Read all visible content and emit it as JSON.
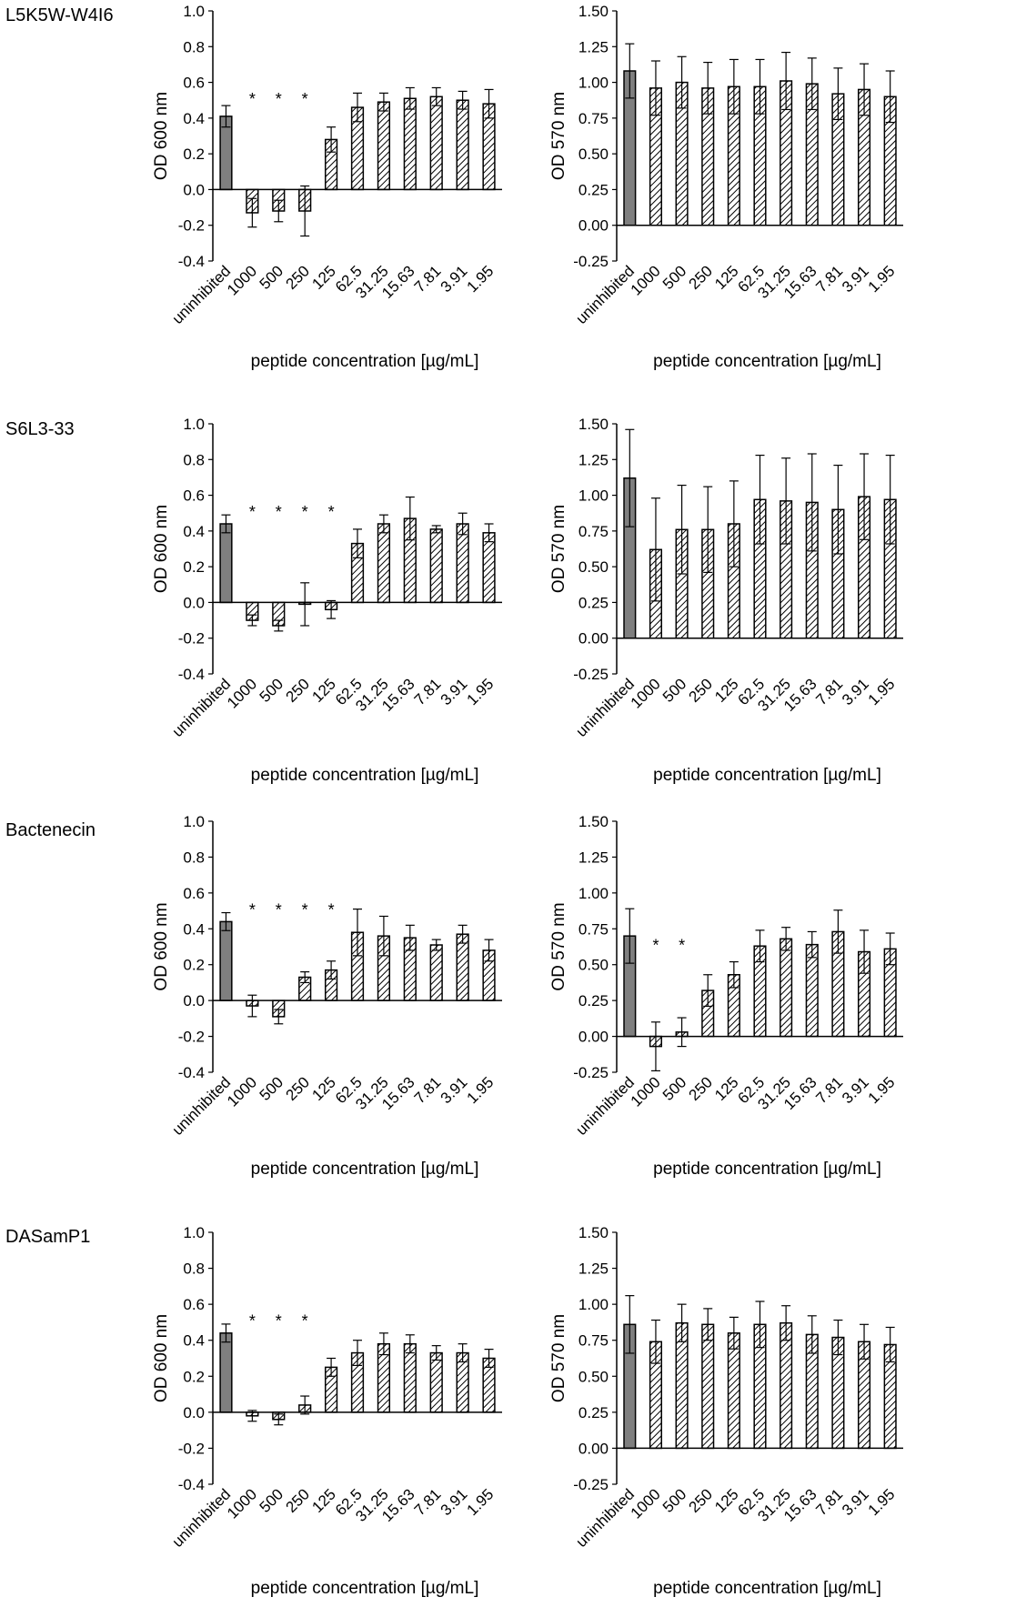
{
  "colors": {
    "uninhibited_fill": "#7f7f7f",
    "axis": "#000000",
    "hatch": "#000000",
    "background": "#ffffff"
  },
  "rows": [
    {
      "label": "L5K5W-W4I6"
    },
    {
      "label": "S6L3-33"
    },
    {
      "label": "Bactenecin"
    },
    {
      "label": "DASamP1"
    }
  ],
  "chart_data": [
    {
      "type": "bar",
      "row": 0,
      "col": 0,
      "categories": [
        "uninhibited",
        "1000",
        "500",
        "250",
        "125",
        "62.5",
        "31.25",
        "15.63",
        "7.81",
        "3.91",
        "1.95"
      ],
      "values": [
        0.41,
        -0.13,
        -0.12,
        -0.12,
        0.28,
        0.46,
        0.49,
        0.51,
        0.52,
        0.5,
        0.48
      ],
      "errors": [
        0.06,
        0.08,
        0.06,
        0.14,
        0.07,
        0.08,
        0.05,
        0.06,
        0.05,
        0.05,
        0.08
      ],
      "significant": [
        false,
        true,
        true,
        true,
        false,
        false,
        false,
        false,
        false,
        false,
        false
      ],
      "ylabel": "OD 600 nm",
      "xlabel": "peptide concentration [µg/mL]",
      "ylim": [
        -0.4,
        1.0
      ],
      "yticks": [
        "-0.4",
        "-0.2",
        "0.0",
        "0.2",
        "0.4",
        "0.6",
        "0.8",
        "1.0"
      ]
    },
    {
      "type": "bar",
      "row": 0,
      "col": 1,
      "categories": [
        "uninhibited",
        "1000",
        "500",
        "250",
        "125",
        "62.5",
        "31.25",
        "15.63",
        "7.81",
        "3.91",
        "1.95"
      ],
      "values": [
        1.08,
        0.96,
        1.0,
        0.96,
        0.97,
        0.97,
        1.01,
        0.99,
        0.92,
        0.95,
        0.9
      ],
      "errors": [
        0.19,
        0.19,
        0.18,
        0.18,
        0.19,
        0.19,
        0.2,
        0.18,
        0.18,
        0.18,
        0.18
      ],
      "significant": [
        false,
        false,
        false,
        false,
        false,
        false,
        false,
        false,
        false,
        false,
        false
      ],
      "ylabel": "OD 570 nm",
      "xlabel": "peptide concentration [µg/mL]",
      "ylim": [
        -0.25,
        1.5
      ],
      "yticks": [
        "-0.25",
        "0.00",
        "0.25",
        "0.50",
        "0.75",
        "1.00",
        "1.25",
        "1.50"
      ]
    },
    {
      "type": "bar",
      "row": 1,
      "col": 0,
      "categories": [
        "uninhibited",
        "1000",
        "500",
        "250",
        "125",
        "62.5",
        "31.25",
        "15.63",
        "7.81",
        "3.91",
        "1.95"
      ],
      "values": [
        0.44,
        -0.1,
        -0.13,
        -0.01,
        -0.04,
        0.33,
        0.44,
        0.47,
        0.41,
        0.44,
        0.39
      ],
      "errors": [
        0.05,
        0.03,
        0.03,
        0.12,
        0.05,
        0.08,
        0.05,
        0.12,
        0.02,
        0.06,
        0.05
      ],
      "significant": [
        false,
        true,
        true,
        true,
        true,
        false,
        false,
        false,
        false,
        false,
        false
      ],
      "ylabel": "OD 600 nm",
      "xlabel": "peptide concentration [µg/mL]",
      "ylim": [
        -0.4,
        1.0
      ],
      "yticks": [
        "-0.4",
        "-0.2",
        "0.0",
        "0.2",
        "0.4",
        "0.6",
        "0.8",
        "1.0"
      ]
    },
    {
      "type": "bar",
      "row": 1,
      "col": 1,
      "categories": [
        "uninhibited",
        "1000",
        "500",
        "250",
        "125",
        "62.5",
        "31.25",
        "15.63",
        "7.81",
        "3.91",
        "1.95"
      ],
      "values": [
        1.12,
        0.62,
        0.76,
        0.76,
        0.8,
        0.97,
        0.96,
        0.95,
        0.9,
        0.99,
        0.97
      ],
      "errors": [
        0.34,
        0.36,
        0.31,
        0.3,
        0.3,
        0.31,
        0.3,
        0.34,
        0.31,
        0.3,
        0.31
      ],
      "significant": [
        false,
        false,
        false,
        false,
        false,
        false,
        false,
        false,
        false,
        false,
        false
      ],
      "ylabel": "OD 570 nm",
      "xlabel": "peptide concentration [µg/mL]",
      "ylim": [
        -0.25,
        1.5
      ],
      "yticks": [
        "-0.25",
        "0.00",
        "0.25",
        "0.50",
        "0.75",
        "1.00",
        "1.25",
        "1.50"
      ]
    },
    {
      "type": "bar",
      "row": 2,
      "col": 0,
      "categories": [
        "uninhibited",
        "1000",
        "500",
        "250",
        "125",
        "62.5",
        "31.25",
        "15.63",
        "7.81",
        "3.91",
        "1.95"
      ],
      "values": [
        0.44,
        -0.03,
        -0.09,
        0.13,
        0.17,
        0.38,
        0.36,
        0.35,
        0.31,
        0.37,
        0.28
      ],
      "errors": [
        0.05,
        0.06,
        0.04,
        0.03,
        0.05,
        0.13,
        0.11,
        0.07,
        0.03,
        0.05,
        0.06
      ],
      "significant": [
        false,
        true,
        true,
        true,
        true,
        false,
        false,
        false,
        false,
        false,
        false
      ],
      "ylabel": "OD 600 nm",
      "xlabel": "peptide concentration [µg/mL]",
      "ylim": [
        -0.4,
        1.0
      ],
      "yticks": [
        "-0.4",
        "-0.2",
        "0.0",
        "0.2",
        "0.4",
        "0.6",
        "0.8",
        "1.0"
      ]
    },
    {
      "type": "bar",
      "row": 2,
      "col": 1,
      "categories": [
        "uninhibited",
        "1000",
        "500",
        "250",
        "125",
        "62.5",
        "31.25",
        "15.63",
        "7.81",
        "3.91",
        "1.95"
      ],
      "values": [
        0.7,
        -0.07,
        0.03,
        0.32,
        0.43,
        0.63,
        0.68,
        0.64,
        0.73,
        0.59,
        0.61
      ],
      "errors": [
        0.19,
        0.17,
        0.1,
        0.11,
        0.09,
        0.11,
        0.08,
        0.09,
        0.15,
        0.15,
        0.11
      ],
      "significant": [
        false,
        true,
        true,
        false,
        false,
        false,
        false,
        false,
        false,
        false,
        false
      ],
      "ylabel": "OD 570 nm",
      "xlabel": "peptide concentration [µg/mL]",
      "ylim": [
        -0.25,
        1.5
      ],
      "yticks": [
        "-0.25",
        "0.00",
        "0.25",
        "0.50",
        "0.75",
        "1.00",
        "1.25",
        "1.50"
      ]
    },
    {
      "type": "bar",
      "row": 3,
      "col": 0,
      "categories": [
        "uninhibited",
        "1000",
        "500",
        "250",
        "125",
        "62.5",
        "31.25",
        "15.63",
        "7.81",
        "3.91",
        "1.95"
      ],
      "values": [
        0.44,
        -0.02,
        -0.04,
        0.04,
        0.25,
        0.33,
        0.38,
        0.38,
        0.33,
        0.33,
        0.3
      ],
      "errors": [
        0.05,
        0.03,
        0.03,
        0.05,
        0.05,
        0.07,
        0.06,
        0.05,
        0.04,
        0.05,
        0.05
      ],
      "significant": [
        false,
        true,
        true,
        true,
        false,
        false,
        false,
        false,
        false,
        false,
        false
      ],
      "ylabel": "OD 600 nm",
      "xlabel": "peptide concentration [µg/mL]",
      "ylim": [
        -0.4,
        1.0
      ],
      "yticks": [
        "-0.4",
        "-0.2",
        "0.0",
        "0.2",
        "0.4",
        "0.6",
        "0.8",
        "1.0"
      ]
    },
    {
      "type": "bar",
      "row": 3,
      "col": 1,
      "categories": [
        "uninhibited",
        "1000",
        "500",
        "250",
        "125",
        "62.5",
        "31.25",
        "15.63",
        "7.81",
        "3.91",
        "1.95"
      ],
      "values": [
        0.86,
        0.74,
        0.87,
        0.86,
        0.8,
        0.86,
        0.87,
        0.79,
        0.77,
        0.74,
        0.72
      ],
      "errors": [
        0.2,
        0.15,
        0.13,
        0.11,
        0.11,
        0.16,
        0.12,
        0.13,
        0.12,
        0.12,
        0.12
      ],
      "significant": [
        false,
        false,
        false,
        false,
        false,
        false,
        false,
        false,
        false,
        false,
        false
      ],
      "ylabel": "OD 570 nm",
      "xlabel": "peptide concentration [µg/mL]",
      "ylim": [
        -0.25,
        1.5
      ],
      "yticks": [
        "-0.25",
        "0.00",
        "0.25",
        "0.50",
        "0.75",
        "1.00",
        "1.25",
        "1.50"
      ]
    }
  ]
}
